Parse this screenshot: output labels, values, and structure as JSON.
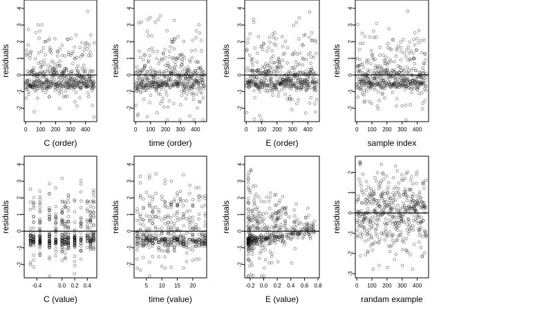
{
  "figure": {
    "panels": [
      {
        "xlabel": "C (order)",
        "ylabel": "residuals",
        "x_ticks": [
          "0",
          "100",
          "200",
          "300",
          "400"
        ],
        "y_ticks": [
          "-2",
          "-1",
          "0",
          "1",
          "2",
          "3",
          "4"
        ]
      },
      {
        "xlabel": "time (order)",
        "ylabel": "residuals",
        "x_ticks": [
          "0",
          "100",
          "200",
          "300",
          "400"
        ],
        "y_ticks": [
          "-2",
          "-1",
          "0",
          "1",
          "2",
          "3",
          "4"
        ]
      },
      {
        "xlabel": "E (order)",
        "ylabel": "residuals",
        "x_ticks": [
          "0",
          "100",
          "200",
          "300",
          "400"
        ],
        "y_ticks": [
          "-2",
          "-1",
          "0",
          "1",
          "2",
          "3",
          "4"
        ]
      },
      {
        "xlabel": "sample index",
        "ylabel": "residuals",
        "x_ticks": [
          "0",
          "100",
          "200",
          "300",
          "400"
        ],
        "y_ticks": [
          "-2",
          "-1",
          "0",
          "1",
          "2",
          "3",
          "4"
        ]
      },
      {
        "xlabel": "C (value)",
        "ylabel": "residuals",
        "x_ticks": [
          "-0.4",
          "0.0",
          "0.2",
          "0.4"
        ],
        "y_ticks": [
          "-2",
          "-1",
          "0",
          "1",
          "2",
          "3",
          "4"
        ]
      },
      {
        "xlabel": "time (value)",
        "ylabel": "residuals",
        "x_ticks": [
          "5",
          "10",
          "15",
          "20"
        ],
        "y_ticks": [
          "-2",
          "-1",
          "0",
          "1",
          "2",
          "3",
          "4"
        ]
      },
      {
        "xlabel": "E (value)",
        "ylabel": "residuals",
        "x_ticks": [
          "-0.2",
          "0.0",
          "0.2",
          "0.4",
          "0.6",
          "0.8"
        ],
        "y_ticks": [
          "-2",
          "-1",
          "0",
          "1",
          "2",
          "3",
          "4"
        ]
      },
      {
        "xlabel": "randam example",
        "ylabel": "residuals",
        "x_ticks": [
          "0",
          "100",
          "200",
          "300",
          "400"
        ],
        "y_ticks": [
          "-3",
          "-2",
          "-1",
          "0",
          "1",
          "2"
        ]
      }
    ]
  },
  "chart_data": [
    {
      "type": "scatter",
      "xlabel": "C (order)",
      "ylabel": "residuals",
      "xlim": [
        -10,
        475
      ],
      "ylim": [
        -2.8,
        4.5
      ],
      "hline": 0,
      "points_pattern": "order",
      "n": 460,
      "seed": 11
    },
    {
      "type": "scatter",
      "xlabel": "time (order)",
      "ylabel": "residuals",
      "xlim": [
        -10,
        475
      ],
      "ylim": [
        -2.8,
        4.5
      ],
      "hline": 0,
      "points_pattern": "order",
      "n": 460,
      "seed": 23
    },
    {
      "type": "scatter",
      "xlabel": "E (order)",
      "ylabel": "residuals",
      "xlim": [
        -10,
        475
      ],
      "ylim": [
        -2.8,
        4.5
      ],
      "hline": 0,
      "points_pattern": "order",
      "n": 460,
      "seed": 37
    },
    {
      "type": "scatter",
      "xlabel": "sample index",
      "ylabel": "residuals",
      "xlim": [
        -10,
        475
      ],
      "ylim": [
        -2.8,
        4.5
      ],
      "hline": 0,
      "points_pattern": "order",
      "n": 460,
      "seed": 41
    },
    {
      "type": "scatter",
      "xlabel": "C (value)",
      "ylabel": "residuals",
      "xlim": [
        -0.6,
        0.55
      ],
      "ylim": [
        -2.8,
        4.5
      ],
      "hline": 0,
      "points_pattern": "grouped",
      "groups": [
        -0.5,
        -0.45,
        -0.35,
        -0.2,
        -0.1,
        0.0,
        0.05,
        0.1,
        0.2,
        0.3,
        0.4,
        0.45,
        0.5
      ],
      "n": 460,
      "seed": 53
    },
    {
      "type": "scatter",
      "xlabel": "time (value)",
      "ylabel": "residuals",
      "xlim": [
        1,
        24.5
      ],
      "ylim": [
        -2.8,
        4.5
      ],
      "hline": 0,
      "points_pattern": "grouped",
      "groups": [
        2,
        3,
        4,
        5,
        6,
        7,
        8,
        9,
        10,
        11,
        12,
        13,
        14,
        15,
        16,
        17,
        18,
        19,
        20,
        21,
        22,
        23,
        24
      ],
      "n": 460,
      "seed": 61
    },
    {
      "type": "scatter",
      "xlabel": "E (value)",
      "ylabel": "residuals",
      "xlim": [
        -0.28,
        0.82
      ],
      "ylim": [
        -2.8,
        4.5
      ],
      "hline": 0,
      "points_pattern": "skewed",
      "n": 460,
      "seed": 71
    },
    {
      "type": "scatter",
      "xlabel": "randam example",
      "ylabel": "residuals",
      "xlim": [
        -10,
        475
      ],
      "ylim": [
        -3.2,
        2.8
      ],
      "hline": 0,
      "points_pattern": "random",
      "n": 460,
      "seed": 83
    }
  ]
}
